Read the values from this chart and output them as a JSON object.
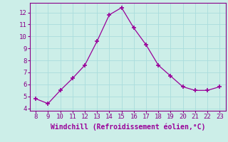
{
  "x": [
    8,
    9,
    10,
    11,
    12,
    13,
    14,
    15,
    16,
    17,
    18,
    19,
    20,
    21,
    22,
    23
  ],
  "y": [
    4.8,
    4.4,
    5.5,
    6.5,
    7.6,
    9.6,
    11.8,
    12.4,
    10.7,
    9.3,
    7.6,
    6.7,
    5.8,
    5.5,
    5.5,
    5.8
  ],
  "line_color": "#990099",
  "marker": "+",
  "marker_size": 5,
  "xlabel": "Windchill (Refroidissement éolien,°C)",
  "xlabel_color": "#990099",
  "xlim": [
    7.5,
    23.5
  ],
  "ylim": [
    3.8,
    12.8
  ],
  "xticks": [
    8,
    9,
    10,
    11,
    12,
    13,
    14,
    15,
    16,
    17,
    18,
    19,
    20,
    21,
    22,
    23
  ],
  "yticks": [
    4,
    5,
    6,
    7,
    8,
    9,
    10,
    11,
    12
  ],
  "bg_color": "#cceee8",
  "grid_color": "#aadddd",
  "tick_color": "#880088",
  "spine_color": "#880088",
  "title": ""
}
